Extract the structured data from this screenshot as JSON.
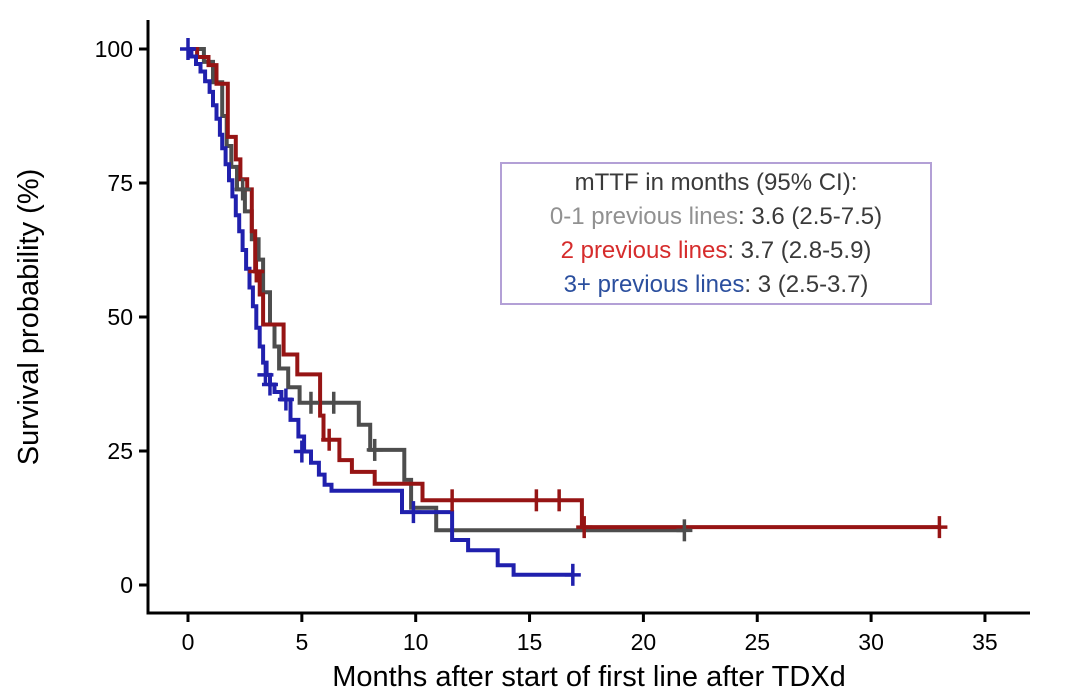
{
  "figure": {
    "background": "#ffffff"
  },
  "axes": {
    "color": "#000000",
    "tick_label_color": "#000000",
    "title_color": "#000000"
  },
  "chart_data": {
    "type": "line",
    "subtype": "kaplan-meier-step-survival",
    "title": "",
    "xlabel": "Months after start of first line after TDXd",
    "ylabel": "Survival probability (%)",
    "xlim": [
      0,
      35
    ],
    "ylim": [
      0,
      100
    ],
    "xticks": [
      0,
      5,
      10,
      15,
      20,
      25,
      30,
      35
    ],
    "yticks": [
      0,
      25,
      50,
      75,
      100
    ],
    "grid": false,
    "legend_position": "inside-upper-right",
    "series": [
      {
        "name": "0-1 previous lines",
        "color": "#4d4d4d",
        "median_text": "3.6 (2.5-7.5)",
        "steps": [
          [
            0,
            100
          ],
          [
            0.7,
            100
          ],
          [
            0.7,
            97.6
          ],
          [
            1.1,
            97.6
          ],
          [
            1.1,
            93.8
          ],
          [
            1.5,
            93.8
          ],
          [
            1.5,
            87.5
          ],
          [
            1.7,
            87.5
          ],
          [
            1.7,
            81.9
          ],
          [
            1.9,
            81.9
          ],
          [
            1.9,
            78
          ],
          [
            2.15,
            78
          ],
          [
            2.15,
            73.8
          ],
          [
            2.5,
            73.8
          ],
          [
            2.5,
            69.7
          ],
          [
            2.8,
            69.7
          ],
          [
            2.8,
            64.5
          ],
          [
            3.1,
            64.5
          ],
          [
            3.1,
            60.7
          ],
          [
            3.3,
            60.7
          ],
          [
            3.3,
            54.6
          ],
          [
            3.6,
            54.6
          ],
          [
            3.6,
            48.6
          ],
          [
            3.8,
            48.6
          ],
          [
            3.8,
            44.5
          ],
          [
            4.0,
            44.5
          ],
          [
            4.0,
            40.4
          ],
          [
            4.4,
            40.4
          ],
          [
            4.4,
            36.9
          ],
          [
            4.9,
            36.9
          ],
          [
            4.9,
            34
          ],
          [
            7.5,
            34
          ],
          [
            7.5,
            29.9
          ],
          [
            8.0,
            29.9
          ],
          [
            8.0,
            25.2
          ],
          [
            9.5,
            25.2
          ],
          [
            9.5,
            19.6
          ],
          [
            9.8,
            19.6
          ],
          [
            9.8,
            14.4
          ],
          [
            10.9,
            14.4
          ],
          [
            10.9,
            10.2
          ],
          [
            21.8,
            10.2
          ]
        ],
        "censors": [
          [
            2.4,
            73.8
          ],
          [
            5.4,
            34
          ],
          [
            6.4,
            34
          ],
          [
            8.2,
            25.2
          ],
          [
            21.8,
            10.2
          ]
        ]
      },
      {
        "name": "2 previous lines",
        "color": "#961414",
        "median_text": "3.7 (2.8-5.9)",
        "steps": [
          [
            0,
            100
          ],
          [
            0.4,
            100
          ],
          [
            0.4,
            98.5
          ],
          [
            0.9,
            98.5
          ],
          [
            0.9,
            97
          ],
          [
            1.25,
            97
          ],
          [
            1.25,
            93.5
          ],
          [
            1.75,
            93.5
          ],
          [
            1.75,
            83.6
          ],
          [
            2.1,
            83.6
          ],
          [
            2.1,
            79.4
          ],
          [
            2.3,
            79.4
          ],
          [
            2.3,
            75.7
          ],
          [
            2.6,
            75.7
          ],
          [
            2.6,
            73.8
          ],
          [
            2.8,
            73.8
          ],
          [
            2.8,
            66
          ],
          [
            2.95,
            66
          ],
          [
            2.95,
            58.5
          ],
          [
            3.15,
            58.5
          ],
          [
            3.15,
            54.2
          ],
          [
            3.3,
            54.2
          ],
          [
            3.3,
            48.6
          ],
          [
            4.2,
            48.6
          ],
          [
            4.2,
            43
          ],
          [
            4.8,
            43
          ],
          [
            4.8,
            39.3
          ],
          [
            5.8,
            39.3
          ],
          [
            5.8,
            31.6
          ],
          [
            5.95,
            31.6
          ],
          [
            5.95,
            27.1
          ],
          [
            6.65,
            27.1
          ],
          [
            6.65,
            23.3
          ],
          [
            7.2,
            23.3
          ],
          [
            7.2,
            21.1
          ],
          [
            8.2,
            21.1
          ],
          [
            8.2,
            18.9
          ],
          [
            10.3,
            18.9
          ],
          [
            10.3,
            15.8
          ],
          [
            17.3,
            15.8
          ],
          [
            17.3,
            10.8
          ],
          [
            33,
            10.8
          ]
        ],
        "censors": [
          [
            3.0,
            58.5
          ],
          [
            6.2,
            27.1
          ],
          [
            11.6,
            15.8
          ],
          [
            15.3,
            15.8
          ],
          [
            16.3,
            15.8
          ],
          [
            17.4,
            10.8
          ],
          [
            33,
            10.8
          ]
        ]
      },
      {
        "name": "3+ previous lines",
        "color": "#2020ad",
        "median_text": "3 (2.5-3.7)",
        "steps": [
          [
            0,
            100
          ],
          [
            0.15,
            100
          ],
          [
            0.15,
            98.6
          ],
          [
            0.35,
            98.6
          ],
          [
            0.35,
            97.2
          ],
          [
            0.55,
            97.2
          ],
          [
            0.55,
            95.8
          ],
          [
            0.75,
            95.8
          ],
          [
            0.75,
            94
          ],
          [
            0.95,
            94
          ],
          [
            0.95,
            92
          ],
          [
            1.1,
            92
          ],
          [
            1.1,
            89.5
          ],
          [
            1.25,
            89.5
          ],
          [
            1.25,
            87
          ],
          [
            1.4,
            87
          ],
          [
            1.4,
            84
          ],
          [
            1.5,
            84
          ],
          [
            1.5,
            81.5
          ],
          [
            1.65,
            81.5
          ],
          [
            1.65,
            78.5
          ],
          [
            1.8,
            78.5
          ],
          [
            1.8,
            75.5
          ],
          [
            1.95,
            75.5
          ],
          [
            1.95,
            72.5
          ],
          [
            2.1,
            72.5
          ],
          [
            2.1,
            69
          ],
          [
            2.25,
            69
          ],
          [
            2.25,
            66
          ],
          [
            2.4,
            66
          ],
          [
            2.4,
            62.5
          ],
          [
            2.55,
            62.5
          ],
          [
            2.55,
            59
          ],
          [
            2.7,
            59
          ],
          [
            2.7,
            55.5
          ],
          [
            2.85,
            55.5
          ],
          [
            2.85,
            52
          ],
          [
            3.0,
            52
          ],
          [
            3.0,
            48
          ],
          [
            3.15,
            48
          ],
          [
            3.15,
            44.5
          ],
          [
            3.3,
            44.5
          ],
          [
            3.3,
            41.5
          ],
          [
            3.45,
            41.5
          ],
          [
            3.45,
            39.2
          ],
          [
            3.6,
            39.2
          ],
          [
            3.6,
            37.4
          ],
          [
            3.8,
            37.4
          ],
          [
            3.8,
            36
          ],
          [
            4.1,
            36
          ],
          [
            4.1,
            34.6
          ],
          [
            4.5,
            34.6
          ],
          [
            4.5,
            30.8
          ],
          [
            4.85,
            30.8
          ],
          [
            4.85,
            27.7
          ],
          [
            5.1,
            27.7
          ],
          [
            5.1,
            24.9
          ],
          [
            5.4,
            24.9
          ],
          [
            5.4,
            22.8
          ],
          [
            5.75,
            22.8
          ],
          [
            5.75,
            20.6
          ],
          [
            6.0,
            20.6
          ],
          [
            6.0,
            18.7
          ],
          [
            6.3,
            18.7
          ],
          [
            6.3,
            17.6
          ],
          [
            9.4,
            17.6
          ],
          [
            9.4,
            13.6
          ],
          [
            11.6,
            13.6
          ],
          [
            11.6,
            8.4
          ],
          [
            12.3,
            8.4
          ],
          [
            12.3,
            6.5
          ],
          [
            13.6,
            6.5
          ],
          [
            13.6,
            3.7
          ],
          [
            14.3,
            3.7
          ],
          [
            14.3,
            1.9
          ],
          [
            16.9,
            1.9
          ]
        ],
        "censors": [
          [
            0,
            100
          ],
          [
            3.4,
            39.2
          ],
          [
            3.6,
            37.4
          ],
          [
            4.3,
            34.6
          ],
          [
            5.0,
            24.9
          ],
          [
            9.9,
            13.6
          ],
          [
            16.9,
            1.9
          ]
        ]
      }
    ]
  },
  "legend": {
    "title": "mTTF in months (95% CI):",
    "border_color": "#b3a0d6",
    "text_color": "#3a3a3a",
    "entries": [
      {
        "label": "0-1 previous lines",
        "value_text": ": 3.6 (2.5-7.5)",
        "label_color": "#919191"
      },
      {
        "label": "2 previous lines",
        "value_text": ": 3.7 (2.8-5.9)",
        "label_color": "#d62c2c"
      },
      {
        "label": "3+ previous lines",
        "value_text": ": 3 (2.5-3.7)",
        "label_color": "#2b4f9e"
      }
    ]
  }
}
